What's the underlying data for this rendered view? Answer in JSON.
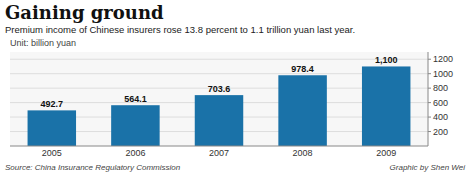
{
  "chart_data": {
    "type": "bar",
    "title": "Gaining ground",
    "subtitle": "Premium income of Chinese insurers rose 13.8 percent to 1.1 trillion yuan last year.",
    "y_label": "Unit: billion yuan",
    "annotations": [
      "Source: China Insurance Regulatory Commission",
      "Graphic by Shen Wei"
    ],
    "categories": [
      "2005",
      "2006",
      "2007",
      "2008",
      "2009"
    ],
    "values": [
      492.7,
      564.1,
      703.6,
      978.4,
      1100
    ],
    "value_labels": [
      "492.7",
      "564.1",
      "703.6",
      "978.4",
      "1,100"
    ],
    "data_labels": true,
    "color": "#1a72a8",
    "ylim": [
      0,
      1300
    ],
    "yticks": [
      200,
      400,
      600,
      800,
      1000,
      1200
    ],
    "grid": true
  }
}
